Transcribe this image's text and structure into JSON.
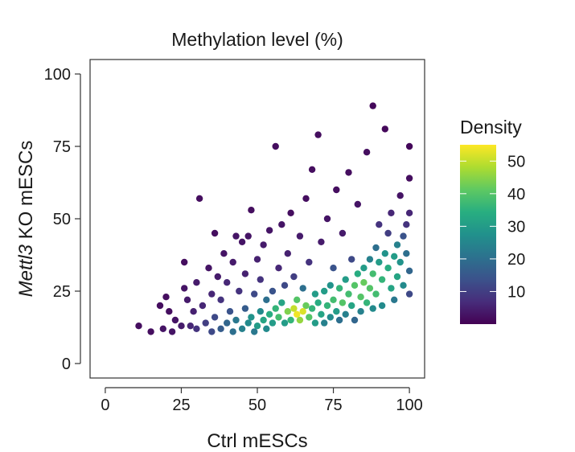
{
  "chart_data": {
    "type": "scatter",
    "title": "Methylation level (%)",
    "xlabel": "Ctrl mESCs",
    "ylabel_italic": "Mettl3",
    "ylabel_rest": " KO mESCs",
    "xlim": [
      -5,
      105
    ],
    "ylim": [
      -5,
      105
    ],
    "xticks": [
      0,
      25,
      50,
      75,
      100
    ],
    "yticks": [
      0,
      25,
      50,
      75,
      100
    ],
    "grid": false,
    "colorbar": {
      "title": "Density",
      "range": [
        0,
        55
      ],
      "ticks": [
        10,
        20,
        30,
        40,
        50
      ],
      "colormap": "viridis",
      "placement": "right"
    },
    "series": [
      {
        "color_by": "density",
        "points": [
          [
            11,
            13,
            2
          ],
          [
            15,
            11,
            2
          ],
          [
            18,
            20,
            2
          ],
          [
            19,
            12,
            3
          ],
          [
            20,
            23,
            2
          ],
          [
            21,
            18,
            2
          ],
          [
            22,
            11,
            3
          ],
          [
            23,
            15,
            3
          ],
          [
            25,
            13,
            4
          ],
          [
            26,
            35,
            2
          ],
          [
            26,
            26,
            3
          ],
          [
            27,
            22,
            4
          ],
          [
            28,
            13,
            6
          ],
          [
            29,
            18,
            5
          ],
          [
            30,
            12,
            8
          ],
          [
            31,
            57,
            2
          ],
          [
            30,
            28,
            4
          ],
          [
            32,
            20,
            6
          ],
          [
            33,
            14,
            10
          ],
          [
            34,
            33,
            3
          ],
          [
            35,
            11,
            12
          ],
          [
            35,
            24,
            6
          ],
          [
            36,
            45,
            2
          ],
          [
            36,
            16,
            12
          ],
          [
            37,
            30,
            4
          ],
          [
            38,
            12,
            16
          ],
          [
            38,
            22,
            8
          ],
          [
            39,
            38,
            3
          ],
          [
            40,
            14,
            18
          ],
          [
            40,
            28,
            6
          ],
          [
            41,
            18,
            14
          ],
          [
            42,
            11,
            20
          ],
          [
            42,
            35,
            4
          ],
          [
            43,
            44,
            3
          ],
          [
            43,
            15,
            22
          ],
          [
            44,
            25,
            8
          ],
          [
            45,
            12,
            24
          ],
          [
            45,
            42,
            3
          ],
          [
            46,
            19,
            16
          ],
          [
            46,
            31,
            5
          ],
          [
            47,
            14,
            26
          ],
          [
            47,
            44,
            3
          ],
          [
            48,
            16,
            28
          ],
          [
            48,
            53,
            2
          ],
          [
            49,
            11,
            22
          ],
          [
            49,
            24,
            12
          ],
          [
            50,
            13,
            30
          ],
          [
            50,
            36,
            5
          ],
          [
            51,
            18,
            26
          ],
          [
            51,
            29,
            8
          ],
          [
            52,
            15,
            32
          ],
          [
            52,
            41,
            4
          ],
          [
            53,
            12,
            26
          ],
          [
            53,
            22,
            20
          ],
          [
            54,
            46,
            3
          ],
          [
            54,
            17,
            34
          ],
          [
            55,
            25,
            14
          ],
          [
            55,
            14,
            30
          ],
          [
            56,
            75,
            2
          ],
          [
            56,
            19,
            36
          ],
          [
            57,
            33,
            6
          ],
          [
            57,
            16,
            38
          ],
          [
            58,
            21,
            32
          ],
          [
            58,
            48,
            3
          ],
          [
            59,
            14,
            30
          ],
          [
            59,
            27,
            12
          ],
          [
            60,
            18,
            44
          ],
          [
            60,
            38,
            5
          ],
          [
            61,
            15,
            36
          ],
          [
            61,
            52,
            2
          ],
          [
            62,
            19,
            50
          ],
          [
            62,
            30,
            10
          ],
          [
            63,
            17,
            54
          ],
          [
            63,
            22,
            40
          ],
          [
            64,
            15,
            46
          ],
          [
            64,
            44,
            4
          ],
          [
            65,
            18,
            52
          ],
          [
            65,
            26,
            20
          ],
          [
            66,
            20,
            42
          ],
          [
            66,
            57,
            2
          ],
          [
            67,
            16,
            40
          ],
          [
            67,
            35,
            8
          ],
          [
            68,
            19,
            36
          ],
          [
            68,
            67,
            2
          ],
          [
            69,
            14,
            30
          ],
          [
            69,
            24,
            30
          ],
          [
            70,
            21,
            34
          ],
          [
            70,
            79,
            2
          ],
          [
            71,
            17,
            32
          ],
          [
            71,
            42,
            4
          ],
          [
            72,
            25,
            30
          ],
          [
            72,
            14,
            24
          ],
          [
            73,
            20,
            36
          ],
          [
            73,
            50,
            3
          ],
          [
            74,
            27,
            28
          ],
          [
            74,
            16,
            26
          ],
          [
            75,
            22,
            38
          ],
          [
            75,
            33,
            14
          ],
          [
            76,
            18,
            30
          ],
          [
            76,
            60,
            2
          ],
          [
            77,
            26,
            36
          ],
          [
            77,
            15,
            20
          ],
          [
            78,
            21,
            40
          ],
          [
            78,
            45,
            4
          ],
          [
            79,
            29,
            30
          ],
          [
            79,
            17,
            24
          ],
          [
            80,
            24,
            38
          ],
          [
            80,
            66,
            2
          ],
          [
            81,
            20,
            32
          ],
          [
            81,
            36,
            12
          ],
          [
            82,
            27,
            40
          ],
          [
            82,
            15,
            18
          ],
          [
            83,
            31,
            34
          ],
          [
            83,
            55,
            3
          ],
          [
            84,
            23,
            40
          ],
          [
            84,
            18,
            24
          ],
          [
            85,
            33,
            30
          ],
          [
            85,
            28,
            42
          ],
          [
            86,
            21,
            36
          ],
          [
            86,
            73,
            2
          ],
          [
            87,
            36,
            24
          ],
          [
            87,
            26,
            40
          ],
          [
            88,
            89,
            1
          ],
          [
            88,
            31,
            38
          ],
          [
            88,
            19,
            26
          ],
          [
            89,
            40,
            20
          ],
          [
            89,
            24,
            38
          ],
          [
            90,
            35,
            30
          ],
          [
            90,
            48,
            8
          ],
          [
            91,
            29,
            36
          ],
          [
            91,
            20,
            26
          ],
          [
            92,
            38,
            28
          ],
          [
            92,
            81,
            1
          ],
          [
            93,
            33,
            34
          ],
          [
            93,
            45,
            10
          ],
          [
            94,
            26,
            32
          ],
          [
            94,
            52,
            6
          ],
          [
            95,
            37,
            30
          ],
          [
            95,
            22,
            22
          ],
          [
            96,
            41,
            24
          ],
          [
            96,
            30,
            32
          ],
          [
            97,
            58,
            3
          ],
          [
            97,
            35,
            28
          ],
          [
            98,
            44,
            14
          ],
          [
            98,
            27,
            26
          ],
          [
            99,
            48,
            8
          ],
          [
            99,
            38,
            20
          ],
          [
            100,
            75,
            1
          ],
          [
            100,
            32,
            18
          ],
          [
            100,
            52,
            6
          ],
          [
            100,
            24,
            12
          ],
          [
            100,
            64,
            2
          ]
        ]
      }
    ]
  }
}
